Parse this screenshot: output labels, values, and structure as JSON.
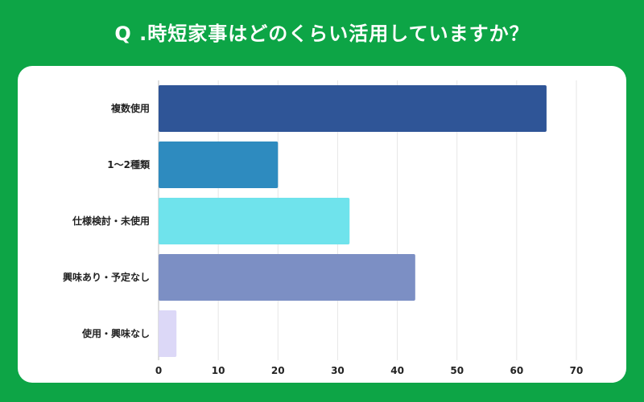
{
  "title": "Q .時短家事はどのくらい活用していますか？",
  "colors": {
    "background": "#0da546",
    "card": "#ffffff",
    "grid": "#e6e6e6",
    "axis": "#bdbdbd"
  },
  "chart_data": {
    "type": "bar",
    "orientation": "horizontal",
    "title": "Q .時短家事はどのくらい活用していますか？",
    "categories": [
      "複数使用",
      "1～2種類",
      "仕様検討・未使用",
      "興味あり・予定なし",
      "使用・興味なし"
    ],
    "values": [
      65,
      20,
      32,
      43,
      3
    ],
    "bar_colors": [
      "#2f5597",
      "#2e8bbf",
      "#6fe3ec",
      "#7c8fc4",
      "#dcd8f7"
    ],
    "xlim": [
      0,
      70
    ],
    "xticks": [
      0,
      10,
      20,
      30,
      40,
      50,
      60,
      70
    ],
    "grid": true,
    "legend": "none"
  }
}
